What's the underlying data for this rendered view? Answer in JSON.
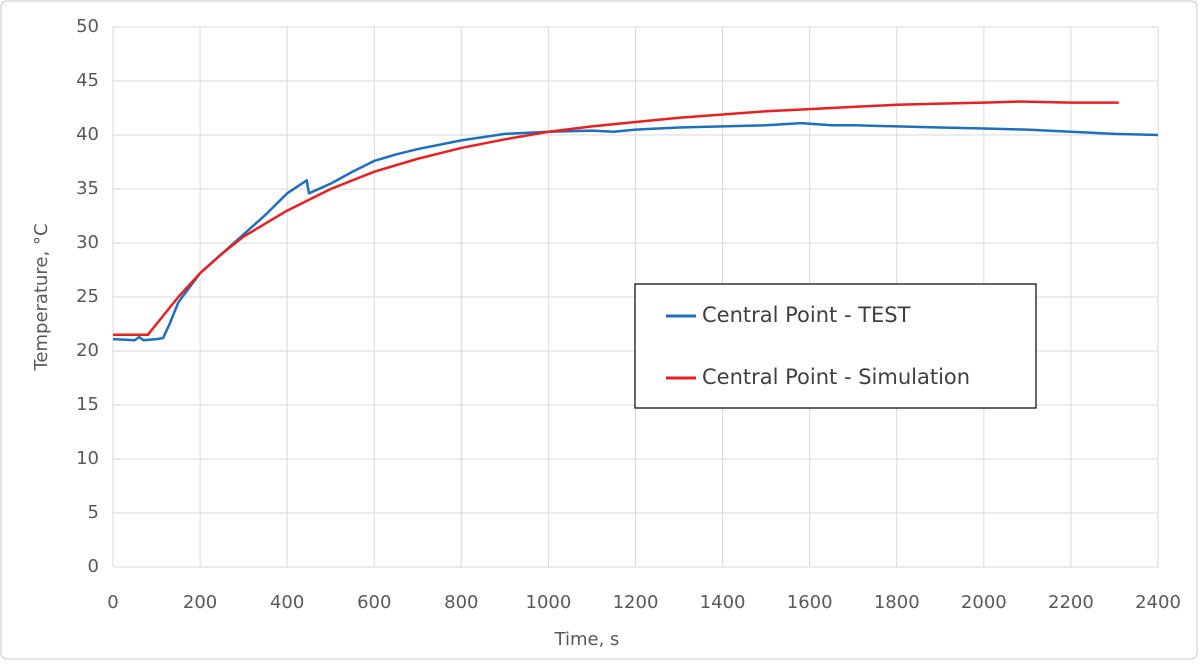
{
  "chart_data": {
    "type": "line",
    "x_label": "Time, s",
    "y_label": "Temperature, °C",
    "xlim": [
      0,
      2400
    ],
    "xticks": [
      0,
      200,
      400,
      600,
      800,
      1000,
      1200,
      1400,
      1600,
      1800,
      2000,
      2200,
      2400
    ],
    "ylim": [
      0,
      50
    ],
    "yticks": [
      0,
      5,
      10,
      15,
      20,
      25,
      30,
      35,
      40,
      45,
      50
    ],
    "grid": true,
    "legend": "center-right",
    "series": [
      {
        "name": "Central Point - TEST",
        "color": "#1f6fbf",
        "x": [
          0,
          50,
          60,
          70,
          100,
          115,
          130,
          150,
          200,
          250,
          300,
          350,
          400,
          430,
          445,
          450,
          500,
          550,
          600,
          650,
          700,
          800,
          900,
          1000,
          1100,
          1150,
          1200,
          1300,
          1400,
          1500,
          1580,
          1650,
          1700,
          1800,
          1900,
          2000,
          2100,
          2200,
          2300,
          2400
        ],
        "values": [
          21.1,
          21.0,
          21.3,
          21.0,
          21.1,
          21.2,
          22.5,
          24.5,
          27.2,
          29.0,
          30.8,
          32.6,
          34.6,
          35.4,
          35.8,
          34.6,
          35.5,
          36.6,
          37.6,
          38.2,
          38.7,
          39.5,
          40.1,
          40.3,
          40.4,
          40.3,
          40.5,
          40.7,
          40.8,
          40.9,
          41.1,
          40.9,
          40.9,
          40.8,
          40.7,
          40.6,
          40.5,
          40.3,
          40.1,
          40.0
        ]
      },
      {
        "name": "Central Point - Simulation",
        "color": "#e8201f",
        "x": [
          0,
          80,
          100,
          150,
          200,
          250,
          300,
          400,
          500,
          600,
          700,
          800,
          900,
          1000,
          1100,
          1200,
          1300,
          1400,
          1500,
          1600,
          1700,
          1800,
          1900,
          2000,
          2080,
          2200,
          2310
        ],
        "values": [
          21.5,
          21.5,
          22.5,
          25.0,
          27.2,
          29.0,
          30.6,
          33.0,
          35.0,
          36.6,
          37.8,
          38.8,
          39.6,
          40.3,
          40.8,
          41.2,
          41.6,
          41.9,
          42.2,
          42.4,
          42.6,
          42.8,
          42.9,
          43.0,
          43.1,
          43.0,
          43.0
        ]
      }
    ]
  }
}
